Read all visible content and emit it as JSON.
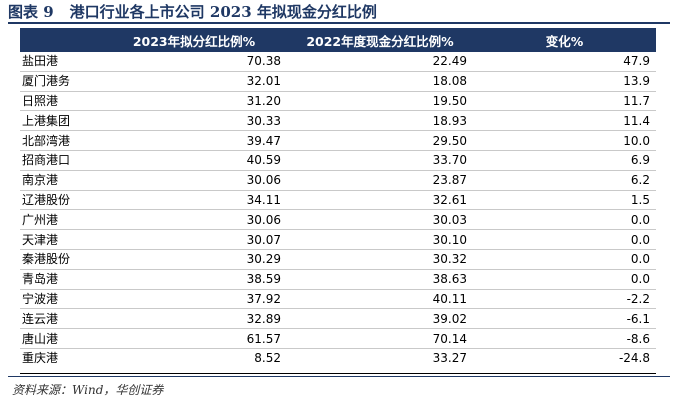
{
  "title": {
    "figure_no": "图表 9",
    "text": "港口行业各上市公司 2023 年拟现金分红比例"
  },
  "table": {
    "headers": [
      "",
      "2023年拟分红比例%",
      "2022年度现金分红比例%",
      "变化%"
    ],
    "rows": [
      [
        "盐田港",
        "70.38",
        "22.49",
        "47.9"
      ],
      [
        "厦门港务",
        "32.01",
        "18.08",
        "13.9"
      ],
      [
        "日照港",
        "31.20",
        "19.50",
        "11.7"
      ],
      [
        "上港集团",
        "30.33",
        "18.93",
        "11.4"
      ],
      [
        "北部湾港",
        "39.47",
        "29.50",
        "10.0"
      ],
      [
        "招商港口",
        "40.59",
        "33.70",
        "6.9"
      ],
      [
        "南京港",
        "30.06",
        "23.87",
        "6.2"
      ],
      [
        "辽港股份",
        "34.11",
        "32.61",
        "1.5"
      ],
      [
        "广州港",
        "30.06",
        "30.03",
        "0.0"
      ],
      [
        "天津港",
        "30.07",
        "30.10",
        "0.0"
      ],
      [
        "秦港股份",
        "30.29",
        "30.32",
        "0.0"
      ],
      [
        "青岛港",
        "38.59",
        "38.63",
        "0.0"
      ],
      [
        "宁波港",
        "37.92",
        "40.11",
        "-2.2"
      ],
      [
        "连云港",
        "32.89",
        "39.02",
        "-6.1"
      ],
      [
        "唐山港",
        "61.57",
        "70.14",
        "-8.6"
      ],
      [
        "重庆港",
        "8.52",
        "33.27",
        "-24.8"
      ]
    ]
  },
  "source": "资料来源：Wind，华创证券",
  "colors": {
    "header_bg": "#1f3864",
    "header_text": "#ffffff"
  }
}
